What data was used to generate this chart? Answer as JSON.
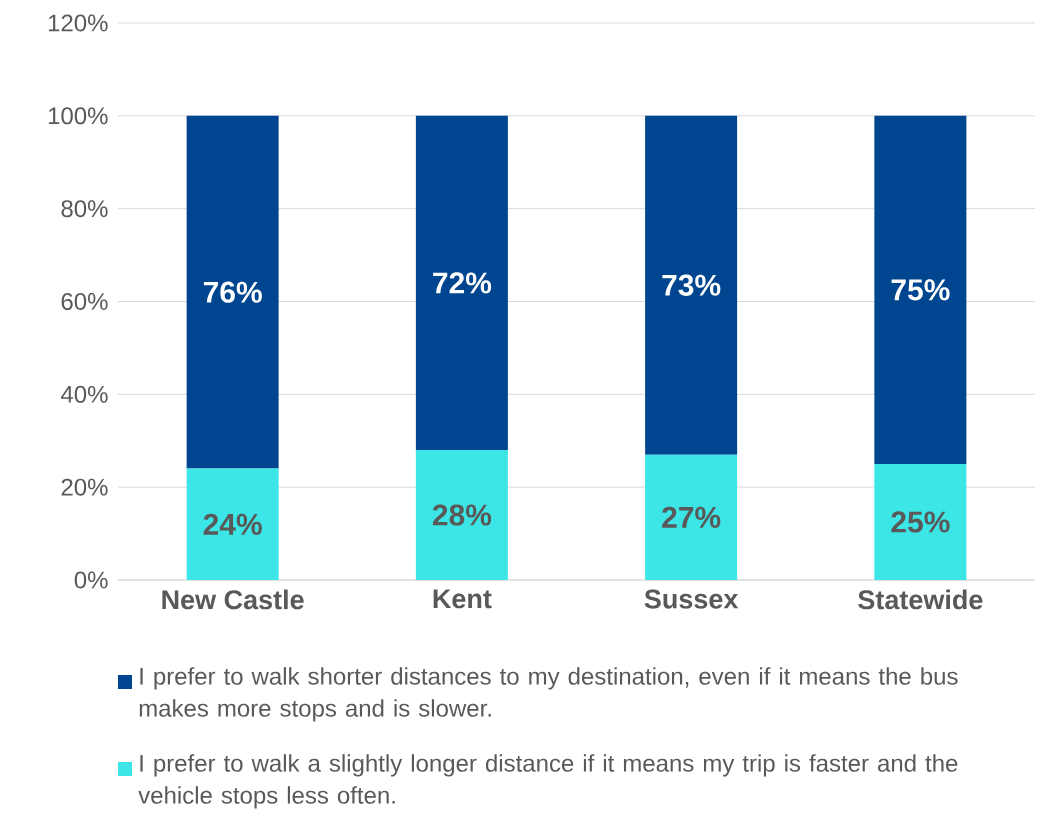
{
  "chart_data": {
    "type": "bar",
    "stacked": true,
    "categories": [
      "New Castle",
      "Kent",
      "Sussex",
      "Statewide"
    ],
    "series": [
      {
        "name": "I prefer to walk a slightly longer distance if it means my trip is faster and the vehicle stops less often.",
        "color": "#3ce6e6",
        "values": [
          24,
          28,
          27,
          25
        ],
        "value_labels": [
          "24%",
          "28%",
          "27%",
          "25%"
        ]
      },
      {
        "name": "I prefer to walk shorter distances to my destination, even if it means the bus makes more stops and is slower.",
        "color": "#00458f",
        "values": [
          76,
          72,
          73,
          75
        ],
        "value_labels": [
          "76%",
          "72%",
          "73%",
          "75%"
        ]
      }
    ],
    "ylim": [
      0,
      120
    ],
    "yticks": [
      {
        "value": 0,
        "label": "0%"
      },
      {
        "value": 20,
        "label": "20%"
      },
      {
        "value": 40,
        "label": "40%"
      },
      {
        "value": 60,
        "label": "60%"
      },
      {
        "value": 80,
        "label": "80%"
      },
      {
        "value": 100,
        "label": "100%"
      },
      {
        "value": 120,
        "label": "120%"
      }
    ],
    "grid": "y",
    "legend": "bottom"
  }
}
